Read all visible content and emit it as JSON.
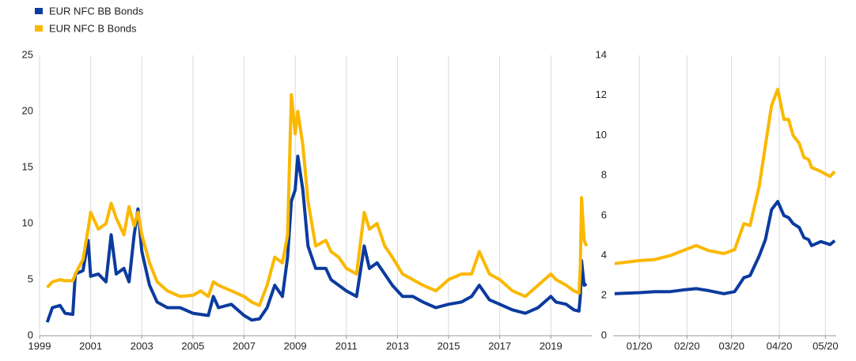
{
  "chart_data": [
    {
      "type": "line",
      "x": [
        1999.3,
        1999.5,
        1999.8,
        2000.0,
        2000.3,
        2000.4,
        2000.7,
        2000.9,
        2001.0,
        2001.3,
        2001.6,
        2001.8,
        2002.0,
        2002.3,
        2002.5,
        2002.7,
        2002.85,
        2003.0,
        2003.3,
        2003.6,
        2004.0,
        2004.5,
        2005.0,
        2005.3,
        2005.6,
        2005.8,
        2006.0,
        2006.5,
        2007.0,
        2007.3,
        2007.6,
        2007.9,
        2008.2,
        2008.5,
        2008.7,
        2008.85,
        2009.0,
        2009.1,
        2009.3,
        2009.5,
        2009.8,
        2010.2,
        2010.4,
        2010.7,
        2011.0,
        2011.4,
        2011.7,
        2011.9,
        2012.2,
        2012.5,
        2012.8,
        2013.2,
        2013.6,
        2014.0,
        2014.5,
        2015.0,
        2015.5,
        2015.9,
        2016.2,
        2016.6,
        2017.0,
        2017.5,
        2018.0,
        2018.5,
        2019.0,
        2019.2,
        2019.6,
        2019.9,
        2020.1,
        2020.15,
        2020.2,
        2020.3,
        2020.4
      ],
      "series": [
        {
          "name": "EUR NFC BB Bonds",
          "color": "#0b3b9e",
          "values": [
            1.2,
            2.5,
            2.7,
            2.0,
            1.9,
            5.5,
            5.8,
            8.5,
            5.3,
            5.5,
            4.8,
            9.0,
            5.5,
            6.0,
            4.8,
            9.0,
            11.3,
            7.5,
            4.5,
            3.0,
            2.5,
            2.5,
            2.0,
            1.9,
            1.8,
            3.5,
            2.5,
            2.8,
            1.8,
            1.4,
            1.5,
            2.5,
            4.5,
            3.5,
            7.0,
            12.0,
            13.0,
            16.0,
            13.0,
            8.0,
            6.0,
            6.0,
            5.0,
            4.5,
            4.0,
            3.5,
            8.0,
            6.0,
            6.5,
            5.5,
            4.5,
            3.5,
            3.5,
            3.0,
            2.5,
            2.8,
            3.0,
            3.5,
            4.5,
            3.2,
            2.8,
            2.3,
            2.0,
            2.5,
            3.5,
            3.0,
            2.8,
            2.3,
            2.2,
            3.5,
            6.7,
            4.5,
            4.6
          ]
        },
        {
          "name": "EUR NFC B Bonds",
          "color": "#fbb800",
          "values": [
            4.3,
            4.8,
            5.0,
            4.9,
            4.9,
            5.5,
            6.8,
            9.5,
            11.0,
            9.5,
            10.0,
            11.8,
            10.5,
            9.0,
            11.5,
            9.8,
            11.0,
            9.0,
            6.5,
            4.8,
            4.0,
            3.5,
            3.6,
            4.0,
            3.5,
            4.8,
            4.5,
            4.0,
            3.5,
            3.0,
            2.7,
            4.5,
            7.0,
            6.5,
            9.0,
            21.5,
            18.0,
            20.0,
            17.0,
            12.0,
            8.0,
            8.5,
            7.5,
            7.0,
            6.0,
            5.5,
            11.0,
            9.5,
            10.0,
            8.0,
            7.0,
            5.5,
            5.0,
            4.5,
            4.0,
            5.0,
            5.5,
            5.5,
            7.5,
            5.5,
            5.0,
            4.0,
            3.5,
            4.5,
            5.5,
            5.0,
            4.5,
            4.0,
            3.8,
            6.0,
            12.3,
            8.5,
            8.0
          ]
        }
      ],
      "xlim": [
        1999,
        2020.6
      ],
      "xticks": [
        1999,
        2001,
        2003,
        2005,
        2007,
        2009,
        2011,
        2013,
        2015,
        2017,
        2019
      ],
      "ylim": [
        0,
        25
      ],
      "yticks": [
        0,
        5,
        10,
        15,
        20,
        25
      ],
      "grid": "x"
    },
    {
      "type": "line",
      "x": [
        -16,
        0,
        10,
        20,
        30,
        37,
        45,
        55,
        62,
        68,
        72,
        78,
        82,
        86,
        90,
        94,
        97,
        100,
        104,
        107,
        110,
        112,
        118,
        124,
        127
      ],
      "series": [
        {
          "color": "#0b3b9e",
          "values": [
            2.1,
            2.15,
            2.2,
            2.2,
            2.3,
            2.35,
            2.25,
            2.1,
            2.2,
            2.9,
            3.0,
            4.0,
            4.8,
            6.3,
            6.7,
            6.0,
            5.9,
            5.6,
            5.4,
            4.9,
            4.8,
            4.5,
            4.7,
            4.55,
            4.75
          ]
        },
        {
          "color": "#fbb800",
          "values": [
            3.6,
            3.75,
            3.8,
            4.0,
            4.3,
            4.5,
            4.25,
            4.1,
            4.3,
            5.6,
            5.5,
            7.5,
            9.5,
            11.5,
            12.3,
            10.8,
            10.8,
            10.0,
            9.6,
            8.9,
            8.8,
            8.4,
            8.2,
            7.95,
            8.2
          ]
        }
      ],
      "xlim": [
        -17,
        128
      ],
      "xticks": [
        {
          "value": 0,
          "label": "01/20"
        },
        {
          "value": 31,
          "label": "02/20"
        },
        {
          "value": 60,
          "label": "03/20"
        },
        {
          "value": 91,
          "label": "04/20"
        },
        {
          "value": 121,
          "label": "05/20"
        }
      ],
      "ylim": [
        0,
        14
      ],
      "yticks": [
        0,
        2,
        4,
        6,
        8,
        10,
        12,
        14
      ],
      "grid": "x"
    }
  ]
}
